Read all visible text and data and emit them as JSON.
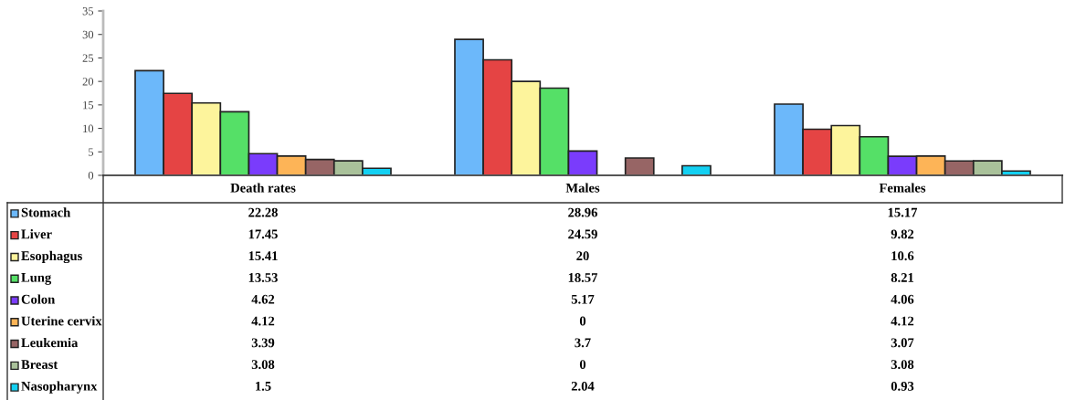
{
  "chart_data": {
    "type": "bar",
    "categories": [
      "Death rates",
      "Males",
      "Females"
    ],
    "series": [
      {
        "name": "Stomach",
        "color": "#6cb8fa",
        "values": [
          22.28,
          28.96,
          15.17
        ]
      },
      {
        "name": "Liver",
        "color": "#e54444",
        "values": [
          17.45,
          24.59,
          9.82
        ]
      },
      {
        "name": "Esophagus",
        "color": "#fdf49c",
        "values": [
          15.41,
          20,
          10.6
        ]
      },
      {
        "name": "Lung",
        "color": "#55e067",
        "values": [
          13.53,
          18.57,
          8.21
        ]
      },
      {
        "name": "Colon",
        "color": "#7a3cfc",
        "values": [
          4.62,
          5.17,
          4.06
        ]
      },
      {
        "name": "Uterine cervix",
        "color": "#fdb457",
        "values": [
          4.12,
          0,
          4.12
        ]
      },
      {
        "name": "Leukemia",
        "color": "#976565",
        "values": [
          3.39,
          3.7,
          3.07
        ]
      },
      {
        "name": "Breast",
        "color": "#a9c19a",
        "values": [
          3.08,
          0,
          3.08
        ]
      },
      {
        "name": "Nasopharynx",
        "color": "#13d0f2",
        "values": [
          1.5,
          2.04,
          0.93
        ]
      }
    ],
    "ylim": [
      0,
      35
    ],
    "yticks": [
      0,
      5,
      10,
      15,
      20,
      25,
      30,
      35
    ],
    "data_labels": true,
    "legend": "bottom left",
    "grid": false
  }
}
